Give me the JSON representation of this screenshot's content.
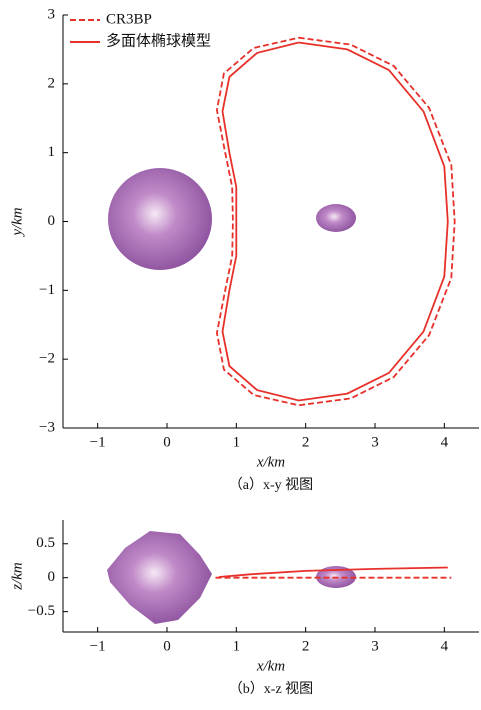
{
  "chart_data": [
    {
      "type": "line",
      "caption": "（a）x-y 视图",
      "xlabel": "x/km",
      "ylabel": "y/km",
      "xlim": [
        -1.5,
        4.5
      ],
      "ylim": [
        -3,
        3
      ],
      "xticks": [
        {
          "value": -1,
          "label": "−1"
        },
        0,
        1,
        2,
        3,
        4
      ],
      "yticks": [
        {
          "value": -3,
          "label": "−3"
        },
        {
          "value": -2,
          "label": "−2"
        },
        {
          "value": -1,
          "label": "−1"
        },
        0,
        1,
        2,
        3
      ],
      "legend": "upper left",
      "series": [
        {
          "name": "CR3BP",
          "color": "#e8302a",
          "dashed": true,
          "x": [
            1.9,
            2.65,
            3.27,
            3.78,
            4.1,
            4.15,
            4.1,
            3.78,
            3.27,
            2.65,
            1.9,
            1.25,
            0.82,
            0.72,
            0.84,
            0.94,
            0.95,
            0.94,
            0.84,
            0.72,
            0.82,
            1.25,
            1.9
          ],
          "values": [
            2.67,
            2.57,
            2.26,
            1.65,
            0.82,
            0,
            -0.82,
            -1.65,
            -2.26,
            -2.57,
            -2.67,
            -2.52,
            -2.15,
            -1.62,
            -1.0,
            -0.5,
            0,
            0.5,
            1.0,
            1.62,
            2.15,
            2.52,
            2.67
          ]
        },
        {
          "name": "多面体椭球模型",
          "color": "#e8302a",
          "dashed": false,
          "x": [
            1.9,
            2.6,
            3.2,
            3.7,
            4.0,
            4.05,
            4.0,
            3.7,
            3.2,
            2.6,
            1.9,
            1.3,
            0.9,
            0.8,
            0.9,
            1.0,
            1.0,
            1.0,
            0.9,
            0.8,
            0.9,
            1.3,
            1.9
          ],
          "values": [
            2.6,
            2.5,
            2.2,
            1.6,
            0.8,
            0,
            -0.8,
            -1.6,
            -2.2,
            -2.5,
            -2.6,
            -2.45,
            -2.1,
            -1.6,
            -1.0,
            -0.5,
            0,
            0.5,
            1.0,
            1.6,
            2.1,
            2.45,
            2.6
          ]
        }
      ]
    },
    {
      "type": "line",
      "caption": "（b）x-z 视图",
      "xlabel": "x/km",
      "ylabel": "z/km",
      "xlim": [
        -1.5,
        4.5
      ],
      "ylim": [
        -0.8,
        0.85
      ],
      "xticks": [
        {
          "value": -1,
          "label": "−1"
        },
        0,
        1,
        2,
        3,
        4
      ],
      "yticks": [
        {
          "value": -0.5,
          "label": "−0.5"
        },
        0,
        0.5
      ],
      "series": [
        {
          "color": "#e8302a",
          "dashed": true,
          "x": [
            0.7,
            4.1
          ],
          "values": [
            0,
            0
          ]
        },
        {
          "color": "#e8302a",
          "dashed": false,
          "x": [
            0.75,
            1.2,
            2,
            3,
            4.05
          ],
          "values": [
            0.01,
            0.05,
            0.1,
            0.13,
            0.15
          ]
        }
      ]
    }
  ]
}
